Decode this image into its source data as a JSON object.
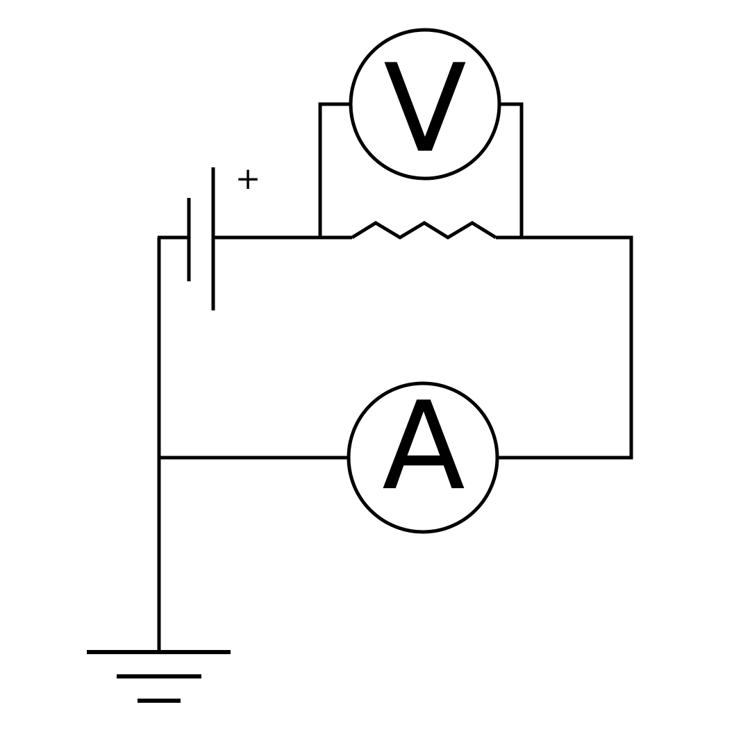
{
  "diagram": {
    "type": "electrical-circuit",
    "colors": {
      "line": "#000000",
      "background": "#ffffff"
    },
    "components": {
      "battery": {
        "polarity_mark": "+"
      },
      "voltmeter": {
        "label": "V"
      },
      "ammeter": {
        "label": "A"
      },
      "resistor": {
        "symbol": "zigzag"
      },
      "ground": {
        "symbol": "earth-ground"
      }
    }
  }
}
